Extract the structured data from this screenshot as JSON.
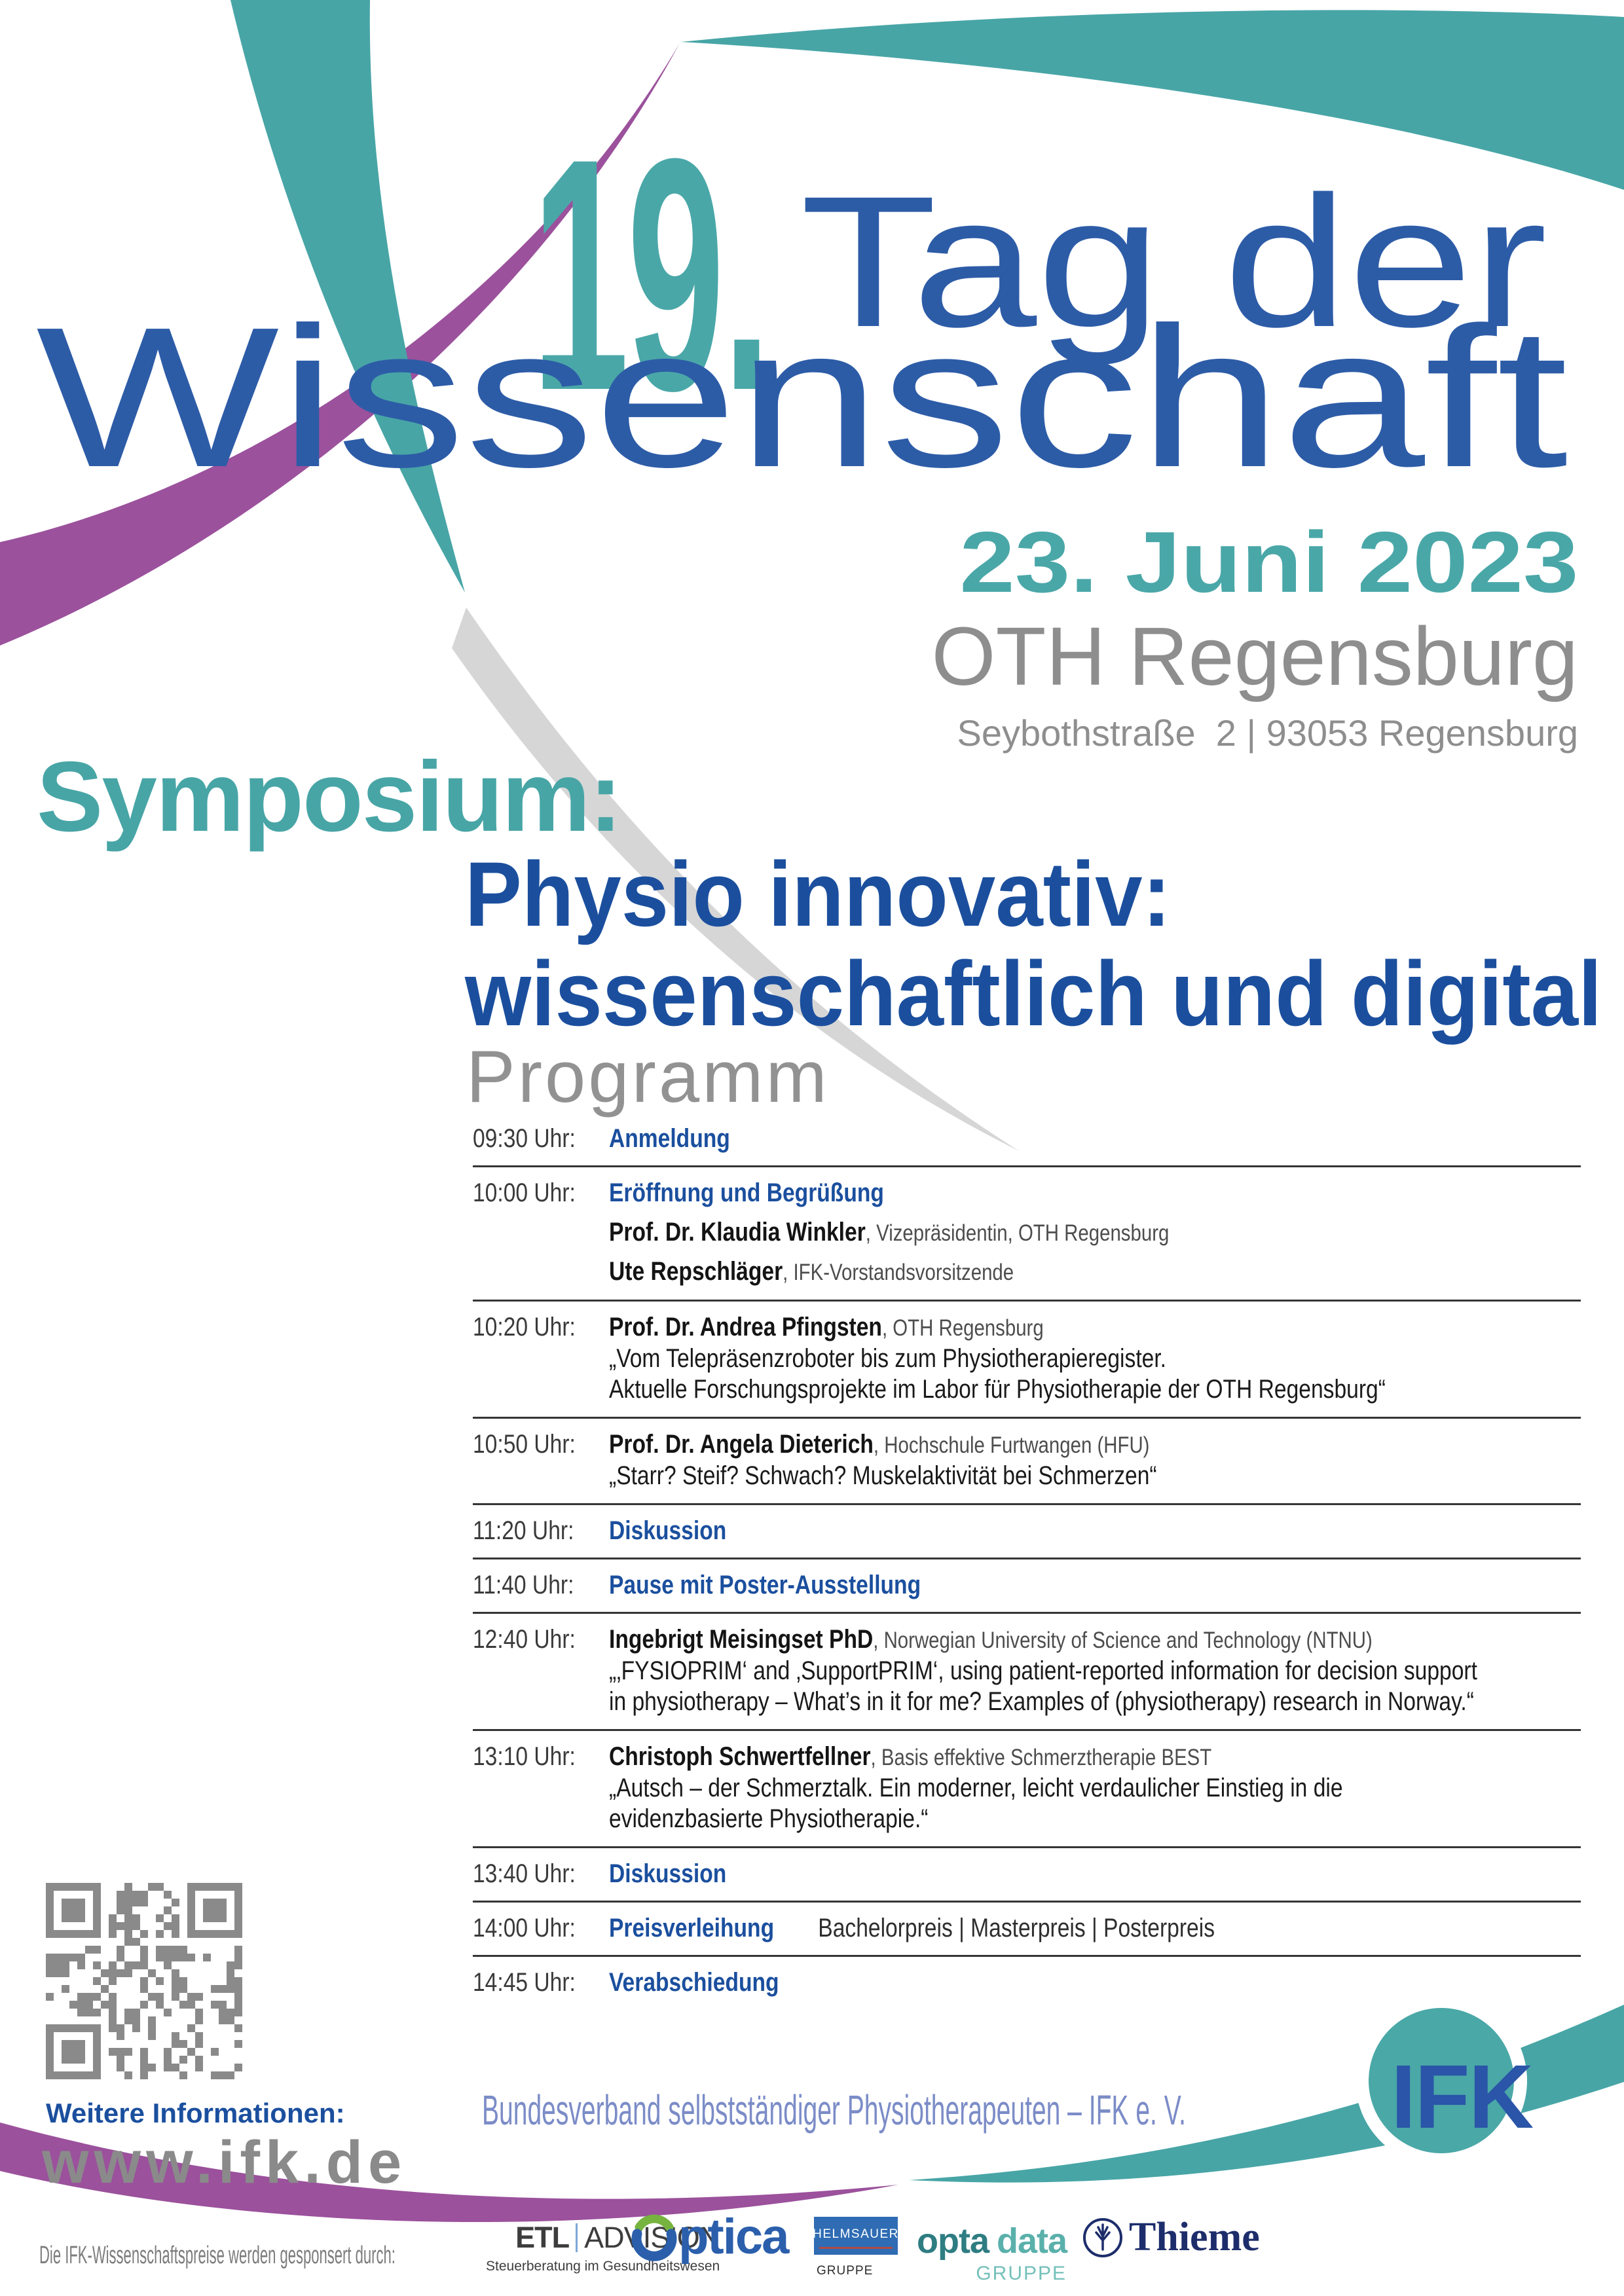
{
  "poster": {
    "edition": "19.",
    "title_line1": "Tag der",
    "title_line2": "Wissenschaft",
    "date": "23. Juni 2023",
    "venue": "OTH Regensburg",
    "address": "Seybothstraße  2 | 93053 Regensburg",
    "symposium_label": "Symposium:",
    "symposium_line1": "Physio innovativ:",
    "symposium_line2": "wissenschaftlich und digital",
    "program_heading": "Programm"
  },
  "program": [
    {
      "time": "09:30 Uhr:",
      "title": "Anmeldung"
    },
    {
      "time": "10:00 Uhr:",
      "title": "Eröffnung und Begrüßung",
      "speakers": [
        {
          "name": "Prof. Dr. Klaudia Winkler",
          "info": ", Vizepräsidentin, OTH Regensburg"
        },
        {
          "name": "Ute Repschläger",
          "info": ", IFK-Vorstandsvorsitzende"
        }
      ]
    },
    {
      "time": "10:20 Uhr:",
      "speaker": {
        "name": "Prof. Dr. Andrea Pfingsten",
        "info": ", OTH Regensburg"
      },
      "lines": [
        "„Vom Telepräsenzroboter bis zum Physiotherapieregister.",
        "Aktuelle Forschungsprojekte im Labor für Physiotherapie der OTH Regensburg“"
      ]
    },
    {
      "time": "10:50 Uhr:",
      "speaker": {
        "name": "Prof. Dr. Angela Dieterich",
        "info": ", Hochschule Furtwangen (HFU)"
      },
      "lines": [
        "„Starr? Steif? Schwach? Muskelaktivität bei Schmerzen“"
      ]
    },
    {
      "time": "11:20 Uhr:",
      "title": "Diskussion"
    },
    {
      "time": "11:40 Uhr:",
      "title": "Pause mit Poster-Ausstellung"
    },
    {
      "time": "12:40 Uhr:",
      "speaker": {
        "name": "Ingebrigt Meisingset PhD",
        "info": ", Norwegian University of Science and Technology (NTNU)"
      },
      "lines": [
        "„‚FYSIOPRIM‘ and ‚SupportPRIM‘, using patient-reported information for decision support",
        "in physiotherapy – What’s in it for me? Examples of (physiotherapy) research in Norway.“"
      ]
    },
    {
      "time": "13:10 Uhr:",
      "speaker": {
        "name": "Christoph Schwertfellner",
        "info": ", Basis effektive Schmerztherapie BEST"
      },
      "lines": [
        "„Autsch – der Schmerztalk. Ein moderner, leicht verdaulicher Einstieg in die",
        "evidenzbasierte Physiotherapie.“"
      ]
    },
    {
      "time": "13:40 Uhr:",
      "title": "Diskussion"
    },
    {
      "time": "14:00 Uhr:",
      "title": "Preisverleihung",
      "title_extra": "Bachelorpreis | Masterpreis | Posterpreis"
    },
    {
      "time": "14:45 Uhr:",
      "title": "Verabschiedung"
    }
  ],
  "footer": {
    "info_label": "Weitere Informationen:",
    "website": "www.ifk.de",
    "org_line": "Bundesverband selbstständiger Physiotherapeuten – IFK e. V.",
    "ifk_logo_text": "IFK",
    "sponsors_label": "Die IFK-Wissenschaftspreise werden gesponsert durch:",
    "sponsors": {
      "etl_main": "ETL",
      "etl_sub": "ADVISION",
      "etl_tagline": "Steuerberatung im Gesundheitswesen",
      "optica_o": "O",
      "optica_rest": "ptica",
      "helmsauer_name": "HELMSAUER",
      "helmsauer_sub": "GRUPPE",
      "optadata_1": "opta",
      "optadata_2": "data",
      "optadata_sub": "GRUPPE",
      "thieme_name": "Thieme"
    }
  },
  "icons": {
    "qr_code": "qr-code",
    "thieme_tree": "tree-icon",
    "optica_o_mark": "optica-o-icon"
  },
  "colors": {
    "teal": "#48a5a6",
    "purple": "#9b519c",
    "title_blue": "#2d5ca7",
    "accent_blue": "#1b4f9e",
    "heading_gray": "#8e8e8e",
    "periwinkle": "#7b8cc7",
    "qr_gray": "#8a8a8a"
  }
}
